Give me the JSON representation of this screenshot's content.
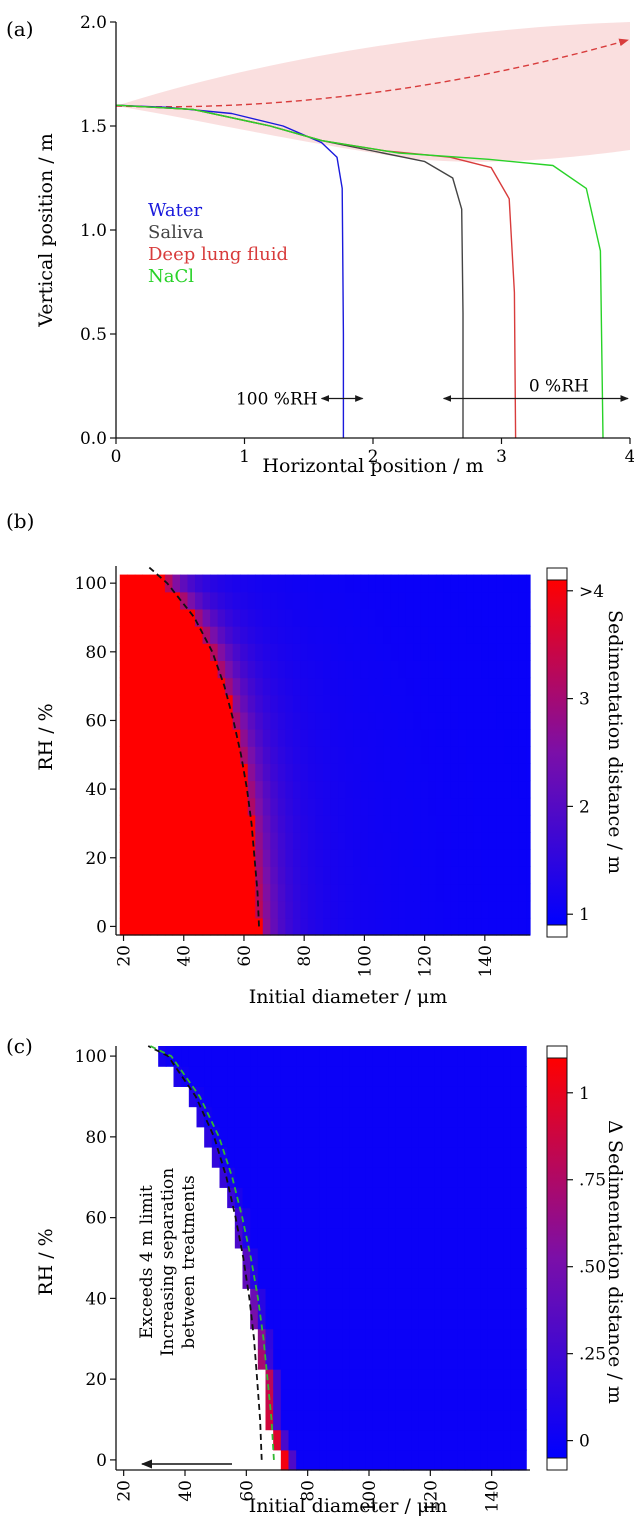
{
  "panels": {
    "a": {
      "label": "(a)"
    },
    "b": {
      "label": "(b)"
    },
    "c": {
      "label": "(c)"
    }
  },
  "chart_data": [
    {
      "type": "line",
      "panel": "(a)",
      "xlabel": "Horizontal position / m",
      "ylabel": "Vertical position / m",
      "xlim": [
        0,
        4
      ],
      "ylim": [
        0,
        2.0
      ],
      "xticks": [
        "0",
        "1",
        "2",
        "3",
        "4"
      ],
      "yticks": [
        "0.0",
        "0.5",
        "1.0",
        "1.5",
        "2.0"
      ],
      "legend_placement": "middle-left",
      "series": [
        {
          "name": "Water",
          "color": "#1a1adc",
          "x": [
            0,
            0.4,
            0.9,
            1.3,
            1.6,
            1.72,
            1.76,
            1.77,
            1.77
          ],
          "y": [
            1.6,
            1.59,
            1.56,
            1.5,
            1.42,
            1.35,
            1.2,
            0.5,
            0.0
          ]
        },
        {
          "name": "Saliva",
          "color": "#444444",
          "x": [
            0,
            0.6,
            1.2,
            1.6,
            2.0,
            2.4,
            2.62,
            2.69,
            2.7,
            2.7
          ],
          "y": [
            1.6,
            1.58,
            1.5,
            1.43,
            1.38,
            1.33,
            1.25,
            1.1,
            0.6,
            0.0
          ]
        },
        {
          "name": "Deep lung fluid",
          "color": "#d83c3c",
          "x": [
            0,
            0.6,
            1.2,
            1.6,
            2.1,
            2.6,
            2.92,
            3.06,
            3.1,
            3.11
          ],
          "y": [
            1.6,
            1.58,
            1.5,
            1.43,
            1.38,
            1.35,
            1.3,
            1.15,
            0.7,
            0.0
          ]
        },
        {
          "name": "NaCl",
          "color": "#28d228",
          "x": [
            0,
            0.6,
            1.2,
            1.6,
            2.2,
            2.9,
            3.4,
            3.66,
            3.77,
            3.79
          ],
          "y": [
            1.6,
            1.58,
            1.5,
            1.43,
            1.37,
            1.34,
            1.31,
            1.2,
            0.9,
            0.0
          ]
        }
      ],
      "annotations": [
        {
          "text": "100 %RH",
          "x_range": [
            1.6,
            1.92
          ],
          "y": 0.19
        },
        {
          "text": "0 %RH",
          "x_range": [
            2.55,
            4.0
          ],
          "y": 0.19
        }
      ]
    },
    {
      "type": "heatmap",
      "panel": "(b)",
      "xlabel": "Initial diameter / μm",
      "ylabel": "RH / %",
      "xlim": [
        17.5,
        155
      ],
      "ylim": [
        -2.5,
        105
      ],
      "xticks": [
        "20",
        "40",
        "60",
        "80",
        "100",
        "120",
        "140"
      ],
      "yticks": [
        "0",
        "20",
        "40",
        "60",
        "80",
        "100"
      ],
      "colorbar": {
        "label": "Sedimentation distance / m",
        "ticks": [
          ">4",
          "3",
          "2",
          "1"
        ],
        "range": [
          0.9,
          4.1
        ],
        "colors": [
          "#0000ff",
          "#7b0fa8",
          "#ff0000"
        ]
      },
      "boundary_rh": [
        0,
        10,
        20,
        30,
        40,
        50,
        60,
        70,
        80,
        90,
        100,
        105
      ],
      "boundary_diameter": [
        65,
        64.5,
        63.5,
        62.5,
        61,
        59,
        56.5,
        53.5,
        49.5,
        43.5,
        34.5,
        28
      ]
    },
    {
      "type": "heatmap",
      "panel": "(c)",
      "xlabel": "Initial diameter / μm",
      "ylabel": "RH / %",
      "xlim": [
        17.5,
        152.5
      ],
      "ylim": [
        -2.5,
        102.5
      ],
      "xticks": [
        "20",
        "40",
        "60",
        "80",
        "100",
        "120",
        "140"
      ],
      "yticks": [
        "0",
        "20",
        "40",
        "60",
        "80",
        "100"
      ],
      "colorbar": {
        "label": "Δ Sedimentation distance / m",
        "ticks": [
          "1",
          ".75",
          ".50",
          ".25",
          "0"
        ],
        "range": [
          -0.05,
          1.1
        ],
        "colors": [
          "#0000ff",
          "#7b0fa8",
          "#ff0000"
        ]
      },
      "staircase_rh": [
        0,
        5,
        10,
        15,
        20,
        25,
        30,
        35,
        40,
        45,
        50,
        55,
        60,
        65,
        70,
        75,
        80,
        85,
        90,
        95,
        100
      ],
      "staircase_diameter": [
        72.5,
        70,
        67.5,
        67.5,
        67.5,
        65,
        65,
        62.5,
        62.5,
        60,
        60,
        57.5,
        57.5,
        55,
        52.5,
        50,
        47.5,
        45,
        42.5,
        37.5,
        32.5
      ],
      "edge_delta": [
        1.05,
        0.95,
        0.9,
        0.85,
        0.8,
        0.72,
        0.6,
        0.5,
        0.45,
        0.4,
        0.35,
        0.3,
        0.25,
        0.22,
        0.2,
        0.18,
        0.15,
        0.12,
        0.1,
        0.08,
        0.05
      ],
      "annotations": [
        "Exceeds 4 m limit",
        "Increasing separation",
        "between treatments"
      ]
    }
  ]
}
